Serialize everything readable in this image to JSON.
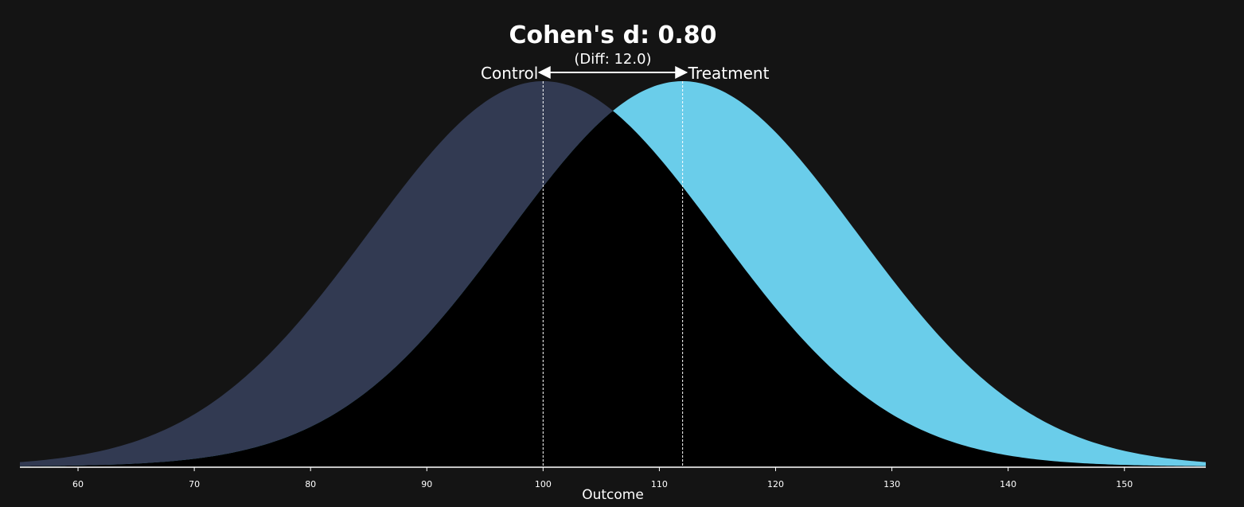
{
  "chart_data": {
    "type": "area",
    "title": "Cohen's d: 0.80",
    "subtitle": "(Diff: 12.0)",
    "xlabel": "Outcome",
    "ylabel": "",
    "xlim": [
      55,
      157
    ],
    "x_ticks": [
      60,
      70,
      80,
      90,
      100,
      110,
      120,
      130,
      140,
      150
    ],
    "grid": false,
    "legend": "none",
    "series": [
      {
        "name": "Control",
        "mean": 100,
        "sd": 15,
        "color": "#323a52"
      },
      {
        "name": "Treatment",
        "mean": 112,
        "sd": 15,
        "color": "#6acdea"
      }
    ],
    "overlap_color": "#000000",
    "background": "#141414",
    "axis_color": "#ffffff",
    "annotation": {
      "type": "double-arrow",
      "from": 100,
      "to": 112
    }
  }
}
